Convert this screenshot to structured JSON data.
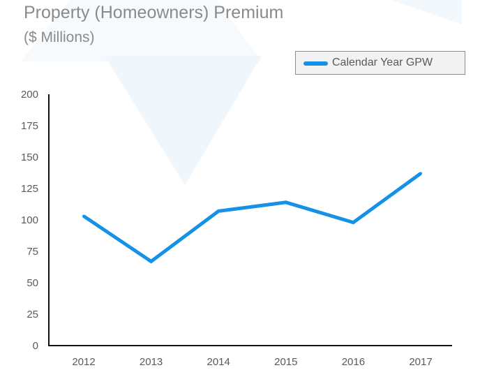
{
  "chart_data": {
    "type": "line",
    "title": "Property (Homeowners) Premium",
    "subtitle": "($ Millions)",
    "categories": [
      "2012",
      "2013",
      "2014",
      "2015",
      "2016",
      "2017"
    ],
    "series": [
      {
        "name": "Calendar Year GPW",
        "values": [
          103,
          67,
          107,
          114,
          98,
          137
        ],
        "color": "#1591e6"
      }
    ],
    "ylim": [
      0,
      200
    ],
    "yticks": [
      0,
      25,
      50,
      75,
      100,
      125,
      150,
      175,
      200
    ],
    "grid": false,
    "legend_position": "top-right"
  }
}
